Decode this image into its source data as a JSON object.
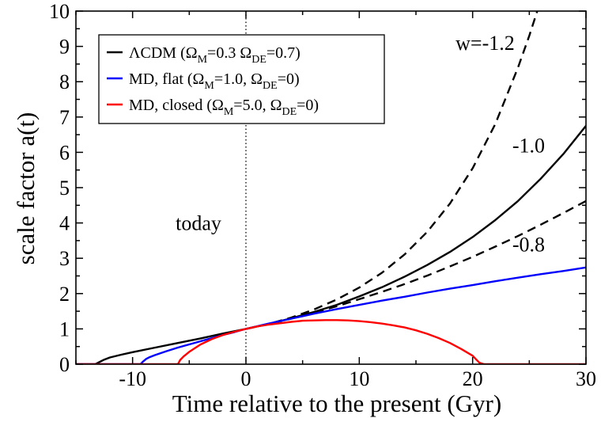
{
  "chart_data": {
    "type": "line",
    "xlabel": "Time relative to the present (Gyr)",
    "ylabel": "scale factor a(t)",
    "xlim": [
      -15,
      30
    ],
    "ylim": [
      0,
      10
    ],
    "xticks": [
      -10,
      0,
      10,
      20,
      30
    ],
    "yticks": [
      0,
      1,
      2,
      3,
      4,
      5,
      6,
      7,
      8,
      9,
      10
    ],
    "grid": false,
    "legend_position": "top-left",
    "series": [
      {
        "name": "ΛCDM (ΩM=0.3 ΩDE=0.7)",
        "legend": {
          "prefix": "ΛCDM (Ω",
          "parts": [
            [
              "M",
              "=0.3 Ω"
            ],
            [
              "DE",
              "=0.7)"
            ]
          ]
        },
        "color": "#000000",
        "style": "solid",
        "x": [
          -15,
          -13.3,
          -13.0,
          -12.5,
          -12.0,
          -11.0,
          -10.0,
          -8.0,
          -6.0,
          -4.0,
          -2.0,
          0,
          2,
          4,
          6,
          8,
          10,
          12,
          14,
          16,
          18,
          20,
          22,
          24,
          26,
          28,
          30
        ],
        "y": [
          0,
          0,
          0.05,
          0.13,
          0.19,
          0.27,
          0.34,
          0.47,
          0.6,
          0.73,
          0.87,
          1.0,
          1.14,
          1.3,
          1.48,
          1.68,
          1.92,
          2.18,
          2.48,
          2.81,
          3.18,
          3.6,
          4.08,
          4.62,
          5.25,
          5.95,
          6.75
        ]
      },
      {
        "name": "w=-1.2",
        "color": "#000000",
        "style": "dashed",
        "x": [
          0,
          2,
          4,
          6,
          8,
          10,
          12,
          14,
          16,
          18,
          20,
          22,
          24,
          25,
          26,
          26.6
        ],
        "y": [
          1.0,
          1.14,
          1.32,
          1.55,
          1.83,
          2.17,
          2.59,
          3.11,
          3.75,
          4.55,
          5.55,
          6.8,
          8.4,
          9.3,
          10.3,
          11.0
        ]
      },
      {
        "name": "-0.8",
        "color": "#000000",
        "style": "dashed",
        "x": [
          0,
          2,
          4,
          6,
          8,
          10,
          12,
          14,
          16,
          18,
          20,
          22,
          24,
          26,
          28,
          30
        ],
        "y": [
          1.0,
          1.14,
          1.29,
          1.46,
          1.64,
          1.84,
          2.05,
          2.27,
          2.51,
          2.77,
          3.04,
          3.33,
          3.63,
          3.95,
          4.28,
          4.62
        ]
      },
      {
        "name": "MD, flat (ΩM=1.0, ΩDE=0)",
        "legend": {
          "prefix": "MD, flat (Ω",
          "parts": [
            [
              "M",
              "=1.0, Ω"
            ],
            [
              "DE",
              "=0)"
            ]
          ]
        },
        "color": "#0000ff",
        "style": "solid",
        "x": [
          -15,
          -9.3,
          -9.1,
          -8.8,
          -8.5,
          -8.0,
          -7.0,
          -6.0,
          -5.0,
          -4.0,
          -3.0,
          -2.0,
          -1.0,
          0,
          2,
          4,
          6,
          8,
          10,
          12,
          14,
          16,
          18,
          20,
          22,
          24,
          26,
          28,
          30
        ],
        "y": [
          0,
          0,
          0.07,
          0.15,
          0.2,
          0.26,
          0.37,
          0.47,
          0.56,
          0.65,
          0.74,
          0.83,
          0.91,
          1.0,
          1.15,
          1.29,
          1.43,
          1.56,
          1.68,
          1.8,
          1.91,
          2.03,
          2.14,
          2.24,
          2.35,
          2.45,
          2.55,
          2.64,
          2.74
        ]
      },
      {
        "name": "MD, closed (ΩM=5.0, ΩDE=0)",
        "legend": {
          "prefix": "MD, closed (Ω",
          "parts": [
            [
              "M",
              "=5.0, Ω"
            ],
            [
              "DE",
              "=0)"
            ]
          ]
        },
        "color": "#ff0000",
        "style": "solid",
        "x": [
          -15,
          -6.0,
          -5.8,
          -5.5,
          -5.0,
          -4.0,
          -3.0,
          -2.0,
          -1.0,
          0,
          1,
          2,
          3,
          4,
          5,
          6,
          7,
          8,
          9,
          10,
          11,
          12,
          13,
          14,
          15,
          16,
          17,
          18,
          19,
          20,
          20.3,
          20.6,
          21.0,
          30
        ],
        "y": [
          0,
          0,
          0.12,
          0.22,
          0.35,
          0.56,
          0.71,
          0.83,
          0.92,
          1.0,
          1.07,
          1.12,
          1.16,
          1.2,
          1.23,
          1.24,
          1.25,
          1.25,
          1.24,
          1.22,
          1.19,
          1.15,
          1.1,
          1.04,
          0.96,
          0.86,
          0.74,
          0.6,
          0.43,
          0.24,
          0.14,
          0.04,
          0,
          0
        ]
      }
    ],
    "annotations": [
      {
        "text": "w=-1.2",
        "x": 18.5,
        "y": 8.9
      },
      {
        "text": "-1.0",
        "x": 23.5,
        "y": 6.0
      },
      {
        "text": "-0.8",
        "x": 23.5,
        "y": 3.2
      },
      {
        "text": "today",
        "x": -6.2,
        "y": 3.8
      }
    ],
    "reference_line": {
      "x": 0,
      "style": "dotted",
      "color": "#000000"
    }
  }
}
